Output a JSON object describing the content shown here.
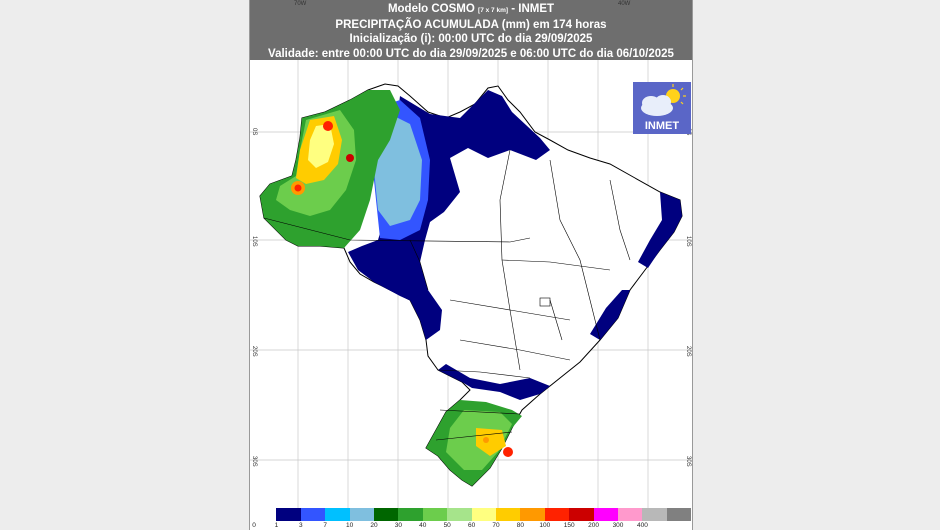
{
  "header": {
    "line1_model": "Modelo COSMO",
    "line1_res": "[7 x 7 km]",
    "line1_org": "- INMET",
    "line2": "PRECIPITAÇÃO ACUMULADA (mm) em 174 horas",
    "line3": "Inicialização (i): 00:00 UTC do dia 29/09/2025",
    "line4": "Validade: entre 00:00 UTC do dia 29/09/2025 e 06:00 UTC do dia 06/10/2025"
  },
  "axis": {
    "lon_labels": [
      "70W",
      "40W"
    ],
    "lat_labels": [
      "0S",
      "10S",
      "20S",
      "30S"
    ]
  },
  "logo": {
    "text": "INMET",
    "icon": "cloud-sun-icon"
  },
  "legend": {
    "labels": [
      "0",
      "1",
      "3",
      "7",
      "10",
      "20",
      "30",
      "40",
      "50",
      "60",
      "70",
      "80",
      "100",
      "150",
      "200",
      "300",
      "400"
    ],
    "colors": [
      "#ffffff",
      "#00007f",
      "#3355ff",
      "#00c0ff",
      "#7fbfdf",
      "#006600",
      "#2ea12e",
      "#6ccd4c",
      "#a6e48b",
      "#ffff80",
      "#ffcc00",
      "#ff9900",
      "#ff2200",
      "#cc0000",
      "#ff00ff",
      "#ff99cc",
      "#b8b8b8",
      "#808080"
    ]
  }
}
